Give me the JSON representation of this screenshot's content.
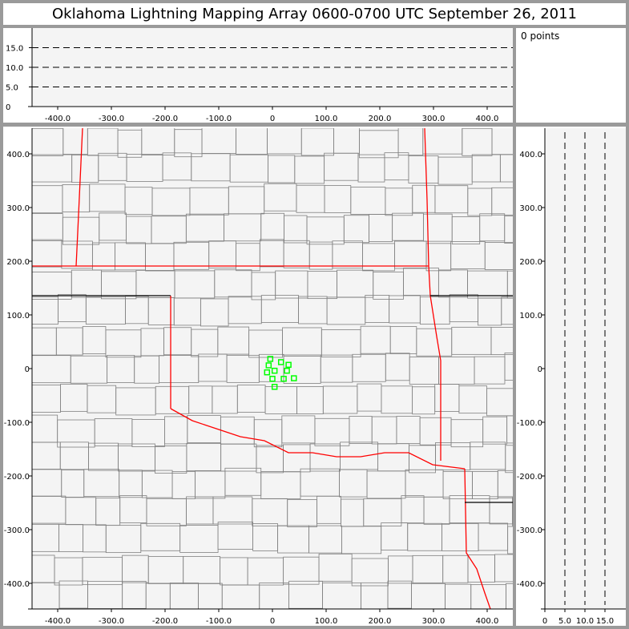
{
  "title": "Oklahoma Lightning Mapping Array   0600-0700 UTC  September 26, 2011",
  "points_label": "0 points",
  "colors": {
    "background": "#f4f4f4",
    "state_border": "#ff0000",
    "county_line": "#808080",
    "station": "#00ff00",
    "frame": "#9a9a9a"
  },
  "top_panel": {
    "y_ticks": [
      "0",
      "5.0",
      "10.0",
      "15.0"
    ],
    "x_ticks": [
      "-400.0",
      "-300.0",
      "-200.0",
      "-100.0",
      "0",
      "100.0",
      "200.0",
      "300.0",
      "400.0"
    ],
    "dashed_levels": [
      5,
      10,
      15
    ]
  },
  "side_panel": {
    "x_ticks": [
      "0",
      "5.0",
      "10.0",
      "15.0"
    ],
    "dashed_levels": [
      5,
      10,
      15
    ]
  },
  "main_panel": {
    "x_ticks": [
      "-400.0",
      "-300.0",
      "-200.0",
      "-100.0",
      "0",
      "100.0",
      "200.0",
      "300.0",
      "400.0"
    ],
    "y_ticks": [
      "400.0",
      "300.0",
      "200.0",
      "100.0",
      "0",
      "-100.0",
      "-200.0",
      "-300.0",
      "-400.0"
    ]
  },
  "chart_data": {
    "type": "scatter",
    "title": "Oklahoma Lightning Mapping Array   0600-0700 UTC  September 26, 2011",
    "xlim": [
      -450,
      450
    ],
    "ylim": [
      -450,
      450
    ],
    "stations": [
      [
        -4,
        18
      ],
      [
        -7,
        6
      ],
      [
        -10,
        -7
      ],
      [
        4,
        -4
      ],
      [
        16,
        12
      ],
      [
        30,
        7
      ],
      [
        27,
        -4
      ],
      [
        0,
        -19
      ],
      [
        21,
        -19
      ],
      [
        40,
        -18
      ],
      [
        4,
        -34
      ]
    ],
    "source_count": 0
  }
}
